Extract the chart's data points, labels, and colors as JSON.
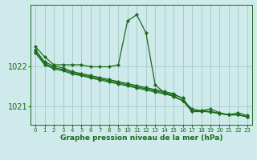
{
  "title": "Graphe pression niveau de la mer (hPa)",
  "background_color": "#ceeaea",
  "grid_color": "#aacccc",
  "line_color": "#1a6b1a",
  "ylim": [
    1020.55,
    1023.55
  ],
  "xlim": [
    -0.5,
    23.5
  ],
  "yticks": [
    1021,
    1022
  ],
  "ytick_labels": [
    "1021",
    "1022"
  ],
  "xtick_labels": [
    "0",
    "1",
    "2",
    "3",
    "4",
    "5",
    "6",
    "7",
    "8",
    "9",
    "10",
    "11",
    "12",
    "13",
    "14",
    "15",
    "16",
    "17",
    "18",
    "19",
    "20",
    "21",
    "22",
    "23"
  ],
  "series": [
    [
      1022.5,
      1022.25,
      1022.05,
      1022.05,
      1022.05,
      1022.05,
      1022.0,
      1022.0,
      1022.0,
      1022.05,
      1023.15,
      1023.3,
      1022.85,
      1021.55,
      1021.35,
      1021.25,
      1021.15,
      1020.95,
      1020.9,
      1020.95,
      1020.85,
      1020.8,
      1020.85,
      1020.78
    ],
    [
      1022.35,
      1022.05,
      1021.95,
      1021.9,
      1021.82,
      1021.78,
      1021.72,
      1021.67,
      1021.62,
      1021.57,
      1021.52,
      1021.47,
      1021.42,
      1021.37,
      1021.32,
      1021.27,
      1021.15,
      1020.88,
      1020.88,
      1020.88,
      1020.83,
      1020.8,
      1020.8,
      1020.75
    ],
    [
      1022.42,
      1022.12,
      1022.02,
      1021.97,
      1021.88,
      1021.83,
      1021.78,
      1021.73,
      1021.68,
      1021.63,
      1021.58,
      1021.53,
      1021.48,
      1021.43,
      1021.38,
      1021.33,
      1021.2,
      1020.9,
      1020.9,
      1020.88,
      1020.84,
      1020.8,
      1020.8,
      1020.75
    ],
    [
      1022.38,
      1022.08,
      1021.98,
      1021.93,
      1021.85,
      1021.8,
      1021.75,
      1021.7,
      1021.65,
      1021.6,
      1021.55,
      1021.5,
      1021.45,
      1021.4,
      1021.35,
      1021.3,
      1021.22,
      1020.89,
      1020.89,
      1020.87,
      1020.83,
      1020.8,
      1020.8,
      1020.75
    ]
  ]
}
